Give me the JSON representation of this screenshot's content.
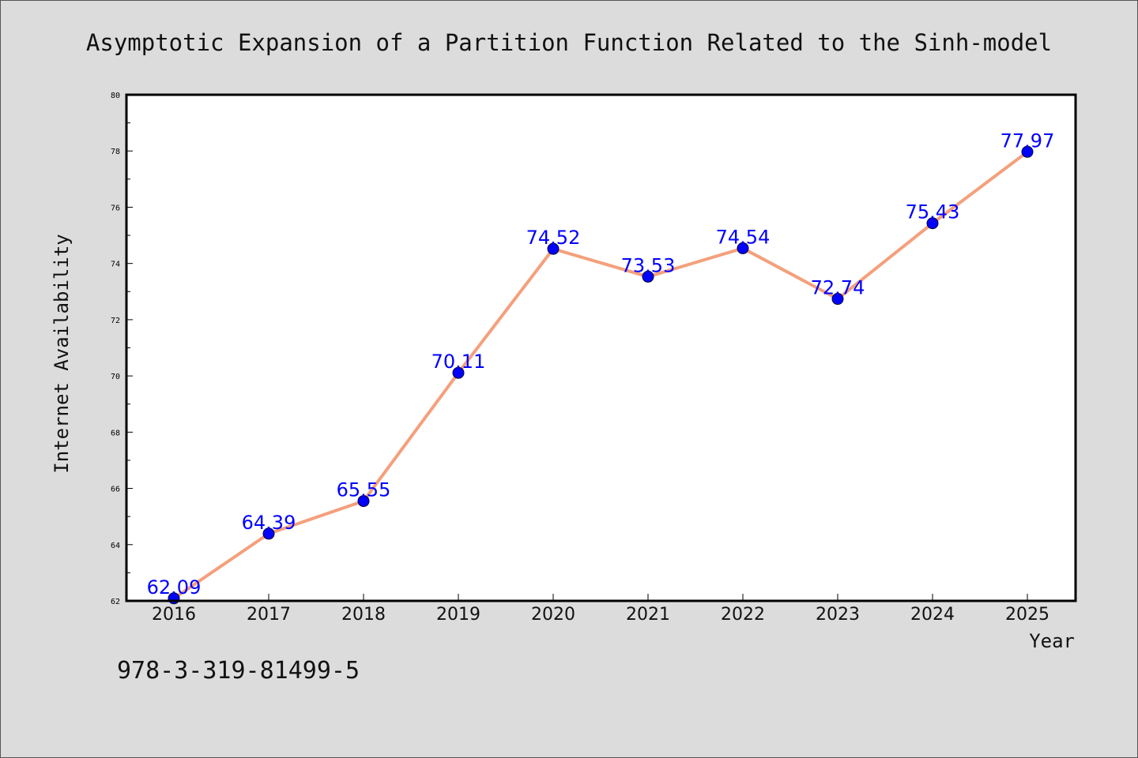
{
  "chart_data": {
    "type": "line",
    "title": "Asymptotic Expansion of a Partition Function Related to the Sinh-model",
    "xlabel": "Year",
    "ylabel": "Internet Availability",
    "x": [
      2016,
      2017,
      2018,
      2019,
      2020,
      2021,
      2022,
      2023,
      2024,
      2025
    ],
    "tick_labels_x": [
      "2016",
      "2017",
      "2018",
      "2019",
      "2020",
      "2021",
      "2022",
      "2023",
      "2024",
      "2025"
    ],
    "series": [
      {
        "values": [
          62.09,
          64.39,
          65.55,
          70.11,
          74.52,
          73.53,
          74.54,
          72.74,
          75.43,
          77.97
        ],
        "labels": [
          "62.09",
          "64.39",
          "65.55",
          "70.11",
          "74.52",
          "73.53",
          "74.54",
          "72.74",
          "75.43",
          "77.97"
        ]
      }
    ],
    "ylim": [
      62,
      80
    ],
    "yticks": [
      62,
      64,
      66,
      68,
      70,
      72,
      74,
      76,
      78,
      80
    ],
    "grid": false,
    "legend": "none",
    "colors": {
      "line": "#f4a07c",
      "marker": "#0000ff",
      "label": "#0000ff",
      "background": "#dcdcdc",
      "plot_background": "#ffffff"
    }
  },
  "annotation": {
    "isbn": "978-3-319-81499-5"
  }
}
